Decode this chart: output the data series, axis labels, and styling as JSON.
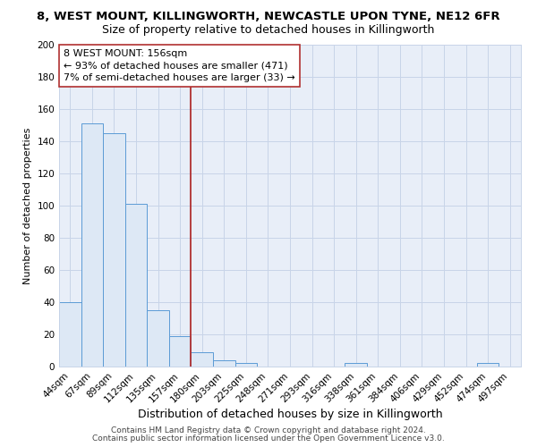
{
  "title_line1": "8, WEST MOUNT, KILLINGWORTH, NEWCASTLE UPON TYNE, NE12 6FR",
  "title_line2": "Size of property relative to detached houses in Killingworth",
  "xlabel": "Distribution of detached houses by size in Killingworth",
  "ylabel": "Number of detached properties",
  "categories": [
    "44sqm",
    "67sqm",
    "89sqm",
    "112sqm",
    "135sqm",
    "157sqm",
    "180sqm",
    "203sqm",
    "225sqm",
    "248sqm",
    "271sqm",
    "293sqm",
    "316sqm",
    "338sqm",
    "361sqm",
    "384sqm",
    "406sqm",
    "429sqm",
    "452sqm",
    "474sqm",
    "497sqm"
  ],
  "values": [
    40,
    151,
    145,
    101,
    35,
    19,
    9,
    4,
    2,
    0,
    0,
    0,
    0,
    2,
    0,
    0,
    0,
    0,
    0,
    2,
    0
  ],
  "bar_fill_color": "#dde8f5",
  "bar_edge_color": "#5b9bd5",
  "vline_x": 5.5,
  "vline_color": "#b03030",
  "annotation_line1": "8 WEST MOUNT: 156sqm",
  "annotation_line2": "← 93% of detached houses are smaller (471)",
  "annotation_line3": "7% of semi-detached houses are larger (33) →",
  "annotation_box_color": "white",
  "annotation_edge_color": "#b03030",
  "ylim": [
    0,
    200
  ],
  "yticks": [
    0,
    20,
    40,
    60,
    80,
    100,
    120,
    140,
    160,
    180,
    200
  ],
  "grid_color": "#c8d4e8",
  "background_color": "#e8eef8",
  "footer_line1": "Contains HM Land Registry data © Crown copyright and database right 2024.",
  "footer_line2": "Contains public sector information licensed under the Open Government Licence v3.0.",
  "title1_fontsize": 9.5,
  "title2_fontsize": 9,
  "xlabel_fontsize": 9,
  "ylabel_fontsize": 8,
  "tick_fontsize": 7.5,
  "annotation_fontsize": 8,
  "footer_fontsize": 6.5
}
